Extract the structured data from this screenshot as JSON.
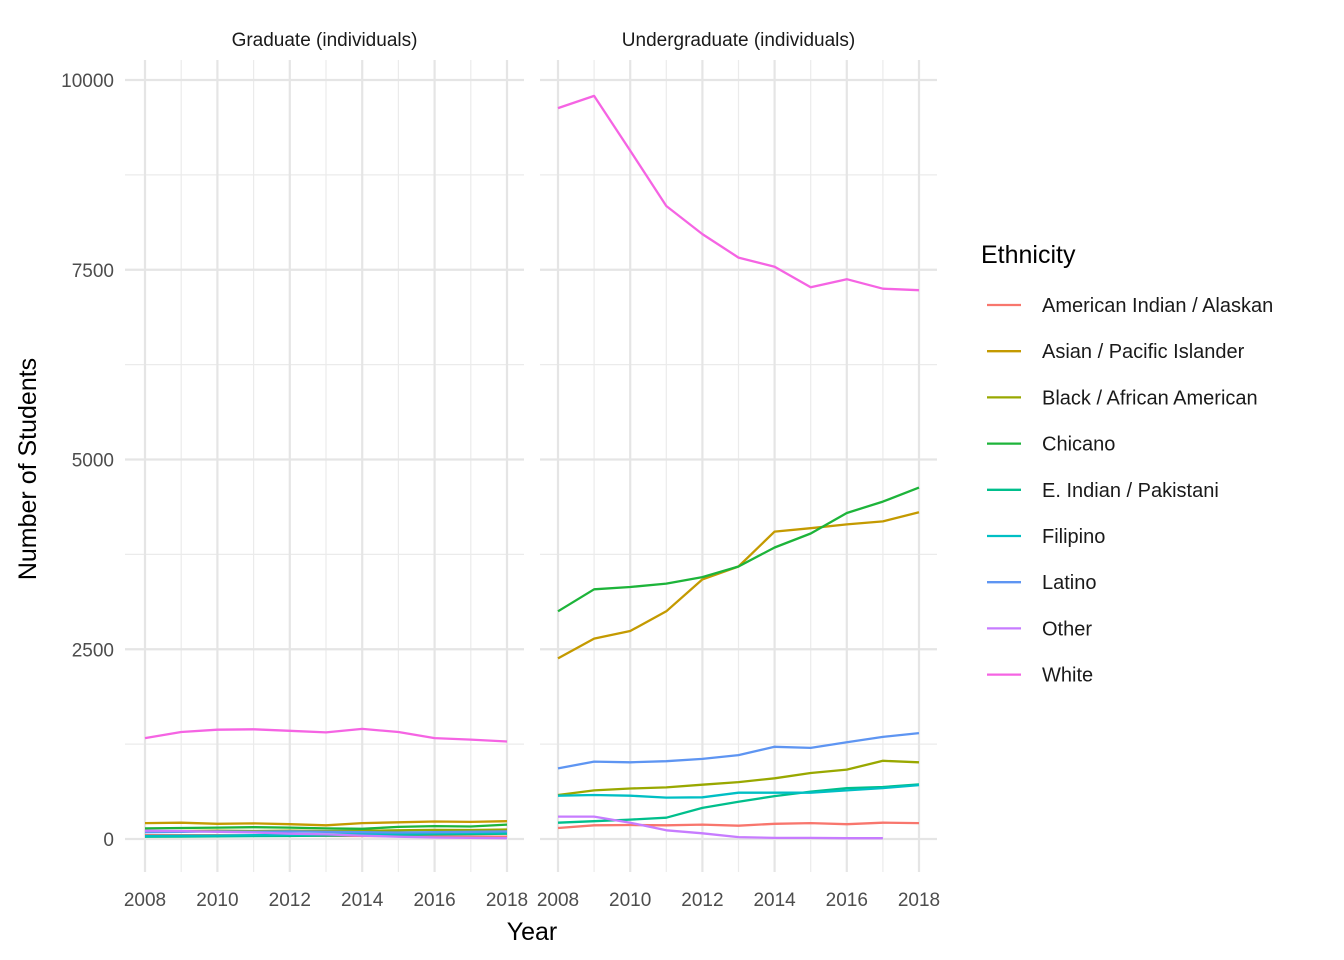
{
  "chart_data": {
    "type": "line",
    "xlabel": "Year",
    "ylabel": "Number of Students",
    "x": [
      2008,
      2009,
      2010,
      2011,
      2012,
      2013,
      2014,
      2015,
      2016,
      2017,
      2018
    ],
    "x_ticks": [
      "2008",
      "2010",
      "2012",
      "2014",
      "2016",
      "2018"
    ],
    "y_ticks": [
      "0",
      "2500",
      "5000",
      "7500",
      "10000"
    ],
    "xlim": [
      2008,
      2018
    ],
    "ylim": [
      -450,
      10300
    ],
    "grid": true,
    "legend": {
      "title": "Ethnicity",
      "placement": "right"
    },
    "panels": [
      {
        "title": "Graduate (individuals)",
        "series": [
          {
            "name": "American Indian / Alaskan",
            "color": "#F8766D",
            "values": [
              50,
              52,
              50,
              48,
              45,
              42,
              40,
              38,
              35,
              33,
              30
            ]
          },
          {
            "name": "Asian / Pacific Islander",
            "color": "#C49A00",
            "values": [
              210,
              215,
              200,
              205,
              195,
              180,
              210,
              220,
              230,
              225,
              235
            ]
          },
          {
            "name": "Black / African American",
            "color": "#99A800",
            "values": [
              100,
              105,
              110,
              105,
              110,
              105,
              110,
              115,
              120,
              118,
              125
            ]
          },
          {
            "name": "Chicano",
            "color": "#1DB43A",
            "values": [
              140,
              145,
              150,
              155,
              150,
              140,
              135,
              160,
              170,
              165,
              190
            ]
          },
          {
            "name": "E. Indian / Pakistani",
            "color": "#00BF8C",
            "values": [
              30,
              32,
              35,
              38,
              40,
              45,
              50,
              55,
              60,
              65,
              70
            ]
          },
          {
            "name": "Filipino",
            "color": "#00BFC4",
            "values": [
              40,
              42,
              45,
              50,
              55,
              60,
              65,
              70,
              75,
              80,
              85
            ]
          },
          {
            "name": "Latino",
            "color": "#5E95F2",
            "values": [
              90,
              95,
              100,
              95,
              100,
              95,
              90,
              85,
              90,
              95,
              100
            ]
          },
          {
            "name": "Other",
            "color": "#C77CFF",
            "values": [
              110,
              105,
              95,
              85,
              70,
              60,
              45,
              30,
              20,
              15,
              10
            ]
          },
          {
            "name": "White",
            "color": "#F564E3",
            "values": [
              1330,
              1410,
              1440,
              1445,
              1425,
              1405,
              1450,
              1410,
              1330,
              1310,
              1285
            ]
          }
        ]
      },
      {
        "title": "Undergraduate (individuals)",
        "series": [
          {
            "name": "American Indian / Alaskan",
            "color": "#F8766D",
            "values": [
              145,
              180,
              185,
              180,
              190,
              175,
              200,
              210,
              195,
              215,
              210
            ]
          },
          {
            "name": "Asian / Pacific Islander",
            "color": "#C49A00",
            "values": [
              2380,
              2640,
              2740,
              3000,
              3420,
              3590,
              4050,
              4095,
              4145,
              4185,
              4305
            ]
          },
          {
            "name": "Black / African American",
            "color": "#99A800",
            "values": [
              580,
              640,
              665,
              680,
              715,
              750,
              800,
              870,
              915,
              1030,
              1010
            ]
          },
          {
            "name": "Chicano",
            "color": "#1DB43A",
            "values": [
              3000,
              3290,
              3320,
              3365,
              3450,
              3590,
              3840,
              4025,
              4295,
              4445,
              4630
            ]
          },
          {
            "name": "E. Indian / Pakistani",
            "color": "#00BF8C",
            "values": [
              215,
              235,
              255,
              280,
              410,
              490,
              565,
              625,
              670,
              685,
              720
            ]
          },
          {
            "name": "Filipino",
            "color": "#00BFC4",
            "values": [
              570,
              580,
              570,
              545,
              550,
              610,
              610,
              610,
              640,
              670,
              710
            ]
          },
          {
            "name": "Latino",
            "color": "#5E95F2",
            "values": [
              930,
              1020,
              1010,
              1025,
              1055,
              1105,
              1215,
              1200,
              1275,
              1345,
              1395
            ]
          },
          {
            "name": "Other",
            "color": "#C77CFF",
            "values": [
              295,
              295,
              215,
              115,
              75,
              25,
              15,
              15,
              10,
              10,
              null
            ]
          },
          {
            "name": "White",
            "color": "#F564E3",
            "values": [
              9630,
              9790,
              9070,
              8340,
              7970,
              7660,
              7540,
              7270,
              7375,
              7250,
              7230
            ]
          }
        ]
      }
    ]
  }
}
